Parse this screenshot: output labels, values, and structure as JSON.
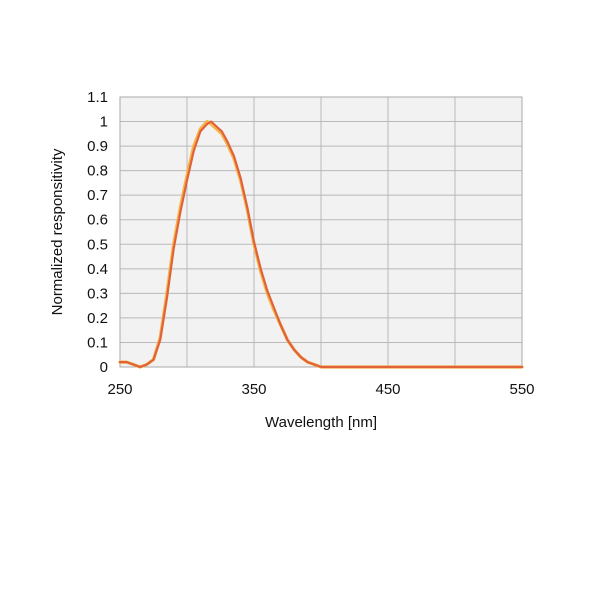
{
  "chart_data": {
    "type": "line",
    "title": "",
    "xlabel": "Wavelength [nm]",
    "ylabel": "Normalized responsitivity",
    "xlim": [
      250,
      550
    ],
    "ylim": [
      0,
      1.1
    ],
    "x_ticks": [
      250,
      350,
      450,
      550
    ],
    "x_tick_labels": [
      "250",
      "350",
      "450",
      "550"
    ],
    "x_grid": [
      250,
      300,
      350,
      400,
      450,
      500,
      550
    ],
    "y_ticks": [
      0,
      0.1,
      0.2,
      0.3,
      0.4,
      0.5,
      0.6,
      0.7,
      0.8,
      0.9,
      1,
      1.1
    ],
    "y_tick_labels": [
      "0",
      "0.1",
      "0.2",
      "0.3",
      "0.4",
      "0.5",
      "0.6",
      "0.7",
      "0.8",
      "0.9",
      "1",
      "1.1"
    ],
    "grid": true,
    "plot_background": "#f2f2f2",
    "grid_color": "#b9b9b9",
    "series": [
      {
        "color": "#f7b54a",
        "x": [
          250,
          255,
          260,
          265,
          270,
          275,
          280,
          285,
          290,
          295,
          300,
          305,
          310,
          315,
          318,
          322,
          326,
          330,
          335,
          340,
          345,
          350,
          355,
          360,
          365,
          370,
          375,
          380,
          385,
          390,
          395,
          400,
          410,
          420,
          450,
          500,
          550
        ],
        "y": [
          0.02,
          0.02,
          0.01,
          0.0,
          0.01,
          0.03,
          0.12,
          0.3,
          0.5,
          0.65,
          0.78,
          0.9,
          0.97,
          1.0,
          0.99,
          0.97,
          0.95,
          0.91,
          0.85,
          0.76,
          0.64,
          0.5,
          0.39,
          0.3,
          0.23,
          0.17,
          0.11,
          0.07,
          0.04,
          0.02,
          0.01,
          0.0,
          0.0,
          0.0,
          0.0,
          0.0,
          0.0
        ]
      },
      {
        "color": "#e0623a",
        "x": [
          250,
          255,
          260,
          265,
          270,
          275,
          280,
          285,
          290,
          295,
          300,
          305,
          310,
          315,
          318,
          322,
          326,
          330,
          335,
          340,
          345,
          350,
          355,
          360,
          365,
          370,
          375,
          380,
          385,
          390,
          395,
          400,
          410,
          420,
          450,
          500,
          550
        ],
        "y": [
          0.02,
          0.02,
          0.01,
          0.0,
          0.01,
          0.03,
          0.11,
          0.28,
          0.48,
          0.63,
          0.76,
          0.88,
          0.96,
          0.99,
          1.0,
          0.98,
          0.96,
          0.92,
          0.86,
          0.77,
          0.65,
          0.51,
          0.4,
          0.31,
          0.24,
          0.17,
          0.11,
          0.07,
          0.04,
          0.02,
          0.01,
          0.0,
          0.0,
          0.0,
          0.0,
          0.0,
          0.0
        ]
      }
    ]
  }
}
